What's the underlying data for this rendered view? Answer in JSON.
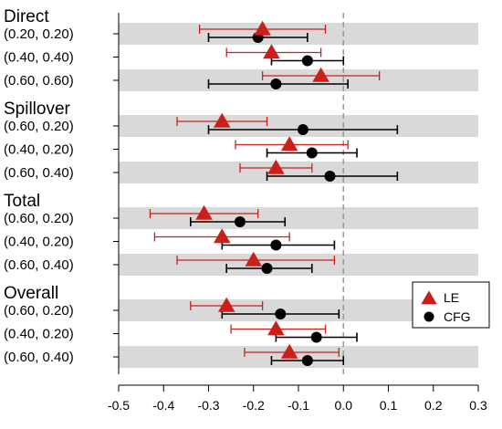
{
  "chart_data": {
    "type": "forest",
    "xlim": [
      -0.5,
      0.3
    ],
    "x_ticks": [
      -0.5,
      -0.4,
      -0.3,
      -0.2,
      -0.1,
      0.0,
      0.1,
      0.2,
      0.3
    ],
    "x_tick_labels": [
      "-0.5",
      "-0.4",
      "-0.3",
      "-0.2",
      "-0.1",
      "0.0",
      "0.1",
      "0.2",
      "0.3"
    ],
    "reference_line": 0.0,
    "legend": {
      "placement": "right",
      "entries": [
        {
          "label": "LE",
          "marker": "triangle",
          "color": "#cc1f1a"
        },
        {
          "label": "CFG",
          "marker": "circle",
          "color": "#000000"
        }
      ]
    },
    "colors": {
      "LE": "#cc1f1a",
      "CFG": "#000000",
      "band": "#d9d9d9",
      "reference": "#999999"
    },
    "groups": [
      {
        "title": "Direct",
        "rows": [
          {
            "label": "(0.20, 0.20)",
            "LE": {
              "est": -0.18,
              "lo": -0.32,
              "hi": -0.04
            },
            "CFG": {
              "est": -0.19,
              "lo": -0.3,
              "hi": -0.08
            }
          },
          {
            "label": "(0.40, 0.40)",
            "LE": {
              "est": -0.16,
              "lo": -0.26,
              "hi": -0.05
            },
            "CFG": {
              "est": -0.08,
              "lo": -0.16,
              "hi": 0.0
            }
          },
          {
            "label": "(0.60, 0.60)",
            "LE": {
              "est": -0.05,
              "lo": -0.18,
              "hi": 0.08
            },
            "CFG": {
              "est": -0.15,
              "lo": -0.3,
              "hi": 0.01
            }
          }
        ]
      },
      {
        "title": "Spillover",
        "rows": [
          {
            "label": "(0.60, 0.20)",
            "LE": {
              "est": -0.27,
              "lo": -0.37,
              "hi": -0.17
            },
            "CFG": {
              "est": -0.09,
              "lo": -0.3,
              "hi": 0.12
            }
          },
          {
            "label": "(0.40, 0.20)",
            "LE": {
              "est": -0.12,
              "lo": -0.24,
              "hi": 0.01
            },
            "CFG": {
              "est": -0.07,
              "lo": -0.17,
              "hi": 0.03
            }
          },
          {
            "label": "(0.60, 0.40)",
            "LE": {
              "est": -0.15,
              "lo": -0.23,
              "hi": -0.07
            },
            "CFG": {
              "est": -0.03,
              "lo": -0.17,
              "hi": 0.12
            }
          }
        ]
      },
      {
        "title": "Total",
        "rows": [
          {
            "label": "(0.60, 0.20)",
            "LE": {
              "est": -0.31,
              "lo": -0.43,
              "hi": -0.19
            },
            "CFG": {
              "est": -0.23,
              "lo": -0.34,
              "hi": -0.13
            }
          },
          {
            "label": "(0.40, 0.20)",
            "LE": {
              "est": -0.27,
              "lo": -0.42,
              "hi": -0.12
            },
            "CFG": {
              "est": -0.15,
              "lo": -0.27,
              "hi": -0.02
            }
          },
          {
            "label": "(0.60, 0.40)",
            "LE": {
              "est": -0.2,
              "lo": -0.37,
              "hi": -0.02
            },
            "CFG": {
              "est": -0.17,
              "lo": -0.26,
              "hi": -0.07
            }
          }
        ]
      },
      {
        "title": "Overall",
        "rows": [
          {
            "label": "(0.60, 0.20)",
            "LE": {
              "est": -0.26,
              "lo": -0.34,
              "hi": -0.18
            },
            "CFG": {
              "est": -0.14,
              "lo": -0.27,
              "hi": -0.01
            }
          },
          {
            "label": "(0.40, 0.20)",
            "LE": {
              "est": -0.15,
              "lo": -0.25,
              "hi": -0.04
            },
            "CFG": {
              "est": -0.06,
              "lo": -0.15,
              "hi": 0.03
            }
          },
          {
            "label": "(0.60, 0.40)",
            "LE": {
              "est": -0.12,
              "lo": -0.22,
              "hi": -0.01
            },
            "CFG": {
              "est": -0.08,
              "lo": -0.16,
              "hi": 0.0
            }
          }
        ]
      }
    ]
  }
}
